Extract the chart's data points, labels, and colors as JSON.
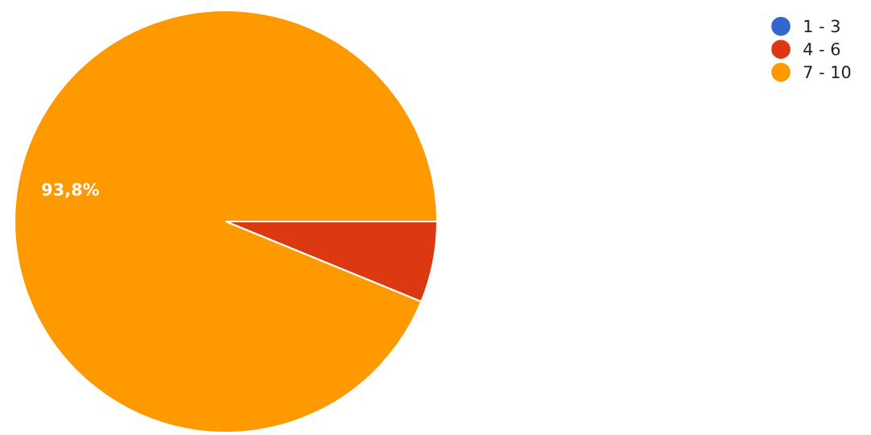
{
  "chart_data": {
    "type": "pie",
    "categories": [
      "1 - 3",
      "4 - 6",
      "7 - 10"
    ],
    "values": [
      0,
      6.2,
      93.8
    ],
    "colors": [
      "#3366cc",
      "#dc3912",
      "#ff9900"
    ],
    "value_labels": [
      null,
      null,
      "93,8%"
    ],
    "legend": "top right"
  }
}
